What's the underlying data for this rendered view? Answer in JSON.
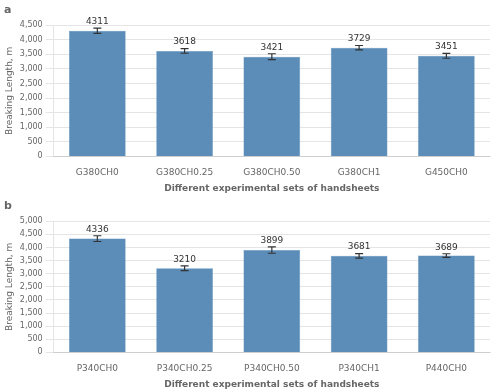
{
  "chart_data": [
    {
      "type": "bar",
      "title": "a",
      "categories": [
        "G380CH0",
        "G380CH0.25",
        "G380CH0.50",
        "G380CH1",
        "G450CH0"
      ],
      "values": [
        4311,
        3618,
        3421,
        3729,
        3451
      ],
      "errors": [
        90,
        80,
        100,
        75,
        85
      ],
      "color": "#5B8DB8",
      "ylim": [
        0,
        4500
      ],
      "yticks": [
        0,
        500,
        {
          "value": 1000,
          "label": "1,000"
        },
        {
          "value": 1500,
          "label": "1,500"
        },
        {
          "value": 2000,
          "label": "2,000"
        },
        {
          "value": 2500,
          "label": "2,500"
        },
        {
          "value": 3000,
          "label": "3,000"
        },
        {
          "value": 3500,
          "label": "3,500"
        },
        {
          "value": 4000,
          "label": "4,000"
        },
        {
          "value": 4500,
          "label": "4,500"
        }
      ],
      "ylabel": "Breaking Length, m",
      "xlabel": "Different experimental sets of handsheets",
      "grid": true,
      "data_labels": true
    },
    {
      "type": "bar",
      "title": "b",
      "categories": [
        "P340CH0",
        "P340CH0.25",
        "P340CH0.50",
        "P340CH1",
        "P440CH0"
      ],
      "values": [
        4336,
        3210,
        3899,
        3681,
        3689
      ],
      "errors": [
        110,
        90,
        120,
        85,
        70
      ],
      "color": "#5B8DB8",
      "ylim": [
        0,
        5000
      ],
      "yticks": [
        0,
        500,
        {
          "value": 1000,
          "label": "1,000"
        },
        {
          "value": 1500,
          "label": "1,500"
        },
        {
          "value": 2000,
          "label": "2,000"
        },
        {
          "value": 2500,
          "label": "2,500"
        },
        {
          "value": 3000,
          "label": "3,000"
        },
        {
          "value": 3500,
          "label": "3,500"
        },
        {
          "value": 4000,
          "label": "4,000"
        },
        {
          "value": 4500,
          "label": "4,500"
        },
        {
          "value": 5000,
          "label": "5,000"
        }
      ],
      "ylabel": "Breaking Length, m",
      "xlabel": "Different experimental sets of handsheets",
      "grid": true,
      "data_labels": true
    }
  ]
}
